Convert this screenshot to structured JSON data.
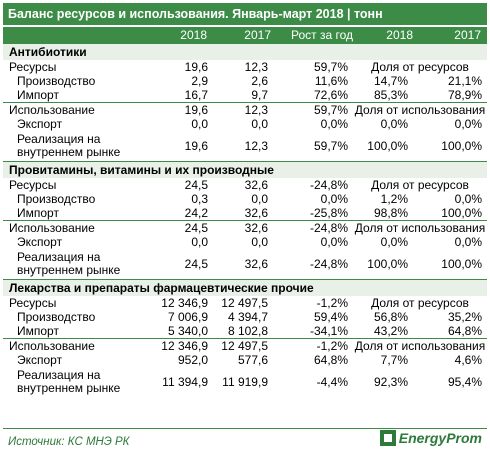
{
  "title": "Баланс ресурсов и использования. Январь-март 2018 | тонн",
  "headers": [
    "2018",
    "2017",
    "Рост за год",
    "2018",
    "2017"
  ],
  "sections": [
    {
      "name": "Антибиотики",
      "rows": [
        {
          "label": "Ресурсы",
          "indent": 0,
          "v": [
            "19,6",
            "12,3",
            "59,7%"
          ],
          "span": "Доля от ресурсов"
        },
        {
          "label": "Производство",
          "indent": 1,
          "v": [
            "2,9",
            "2,6",
            "11,6%",
            "14,7%",
            "21,1%"
          ]
        },
        {
          "label": "Импорт",
          "indent": 1,
          "v": [
            "16,7",
            "9,7",
            "72,6%",
            "85,3%",
            "78,9%"
          ]
        },
        {
          "label": "Использование",
          "indent": 0,
          "v": [
            "19,6",
            "12,3",
            "59,7%"
          ],
          "span": "Доля от использования"
        },
        {
          "label": "Экспорт",
          "indent": 1,
          "v": [
            "0,0",
            "0,0",
            "0,0%",
            "0,0%",
            "0,0%"
          ]
        },
        {
          "label": "Реализация на внутреннем рынке",
          "indent": 1,
          "tall": true,
          "v": [
            "19,6",
            "12,3",
            "59,7%",
            "100,0%",
            "100,0%"
          ]
        }
      ]
    },
    {
      "name": "Провитамины, витамины и их производные",
      "rows": [
        {
          "label": "Ресурсы",
          "indent": 0,
          "v": [
            "24,5",
            "32,6",
            "-24,8%"
          ],
          "span": "Доля от ресурсов"
        },
        {
          "label": "Производство",
          "indent": 1,
          "v": [
            "0,3",
            "0,0",
            "0,0%",
            "1,2%",
            "0,0%"
          ]
        },
        {
          "label": "Импорт",
          "indent": 1,
          "v": [
            "24,2",
            "32,6",
            "-25,8%",
            "98,8%",
            "100,0%"
          ]
        },
        {
          "label": "Использование",
          "indent": 0,
          "v": [
            "24,5",
            "32,6",
            "-24,8%"
          ],
          "span": "Доля от использования"
        },
        {
          "label": "Экспорт",
          "indent": 1,
          "v": [
            "0,0",
            "0,0",
            "0,0%",
            "0,0%",
            "0,0%"
          ]
        },
        {
          "label": "Реализация на внутреннем рынке",
          "indent": 1,
          "tall": true,
          "v": [
            "24,5",
            "32,6",
            "-24,8%",
            "100,0%",
            "100,0%"
          ]
        }
      ]
    },
    {
      "name": "Лекарства и препараты фармацевтические прочие",
      "rows": [
        {
          "label": "Ресурсы",
          "indent": 0,
          "v": [
            "12 346,9",
            "12 497,5",
            "-1,2%"
          ],
          "span": "Доля от ресурсов"
        },
        {
          "label": "Производство",
          "indent": 1,
          "v": [
            "7 006,9",
            "4 394,7",
            "59,4%",
            "56,8%",
            "35,2%"
          ]
        },
        {
          "label": "Импорт",
          "indent": 1,
          "v": [
            "5 340,0",
            "8 102,8",
            "-34,1%",
            "43,2%",
            "64,8%"
          ]
        },
        {
          "label": "Использование",
          "indent": 0,
          "v": [
            "12 346,9",
            "12 497,5",
            "-1,2%"
          ],
          "span": "Доля от использования"
        },
        {
          "label": "Экспорт",
          "indent": 1,
          "v": [
            "952,0",
            "577,6",
            "64,8%",
            "7,7%",
            "4,6%"
          ]
        },
        {
          "label": "Реализация на внутреннем рынке",
          "indent": 1,
          "tall": true,
          "v": [
            "11 394,9",
            "11 919,9",
            "-4,4%",
            "92,3%",
            "95,4%"
          ]
        }
      ]
    }
  ],
  "source": "Источник: КС МНЭ РК",
  "logo": "EnergyProm"
}
